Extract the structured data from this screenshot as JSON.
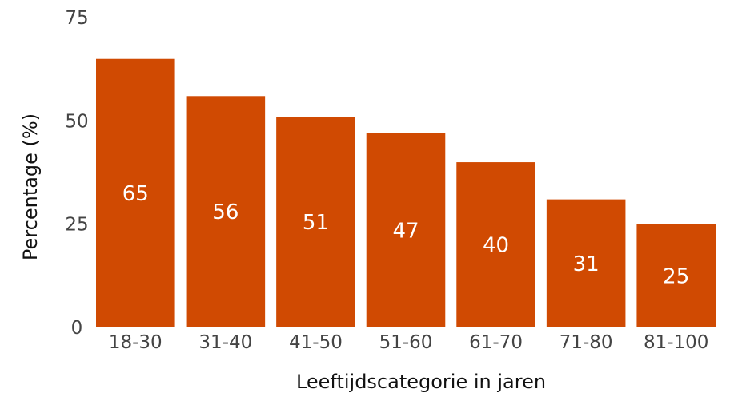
{
  "chart_data": {
    "type": "bar",
    "categories": [
      "18-30",
      "31-40",
      "41-50",
      "51-60",
      "61-70",
      "71-80",
      "81-100"
    ],
    "values": [
      65,
      56,
      51,
      47,
      40,
      31,
      25
    ],
    "title": "",
    "xlabel": "Leeftijdscategorie in jaren",
    "ylabel": "Percentage (%)",
    "ylim": [
      0,
      75
    ],
    "yticks": [
      0,
      25,
      50,
      75
    ],
    "bar_color": "#d04a02",
    "grid": false,
    "data_labels": true
  }
}
